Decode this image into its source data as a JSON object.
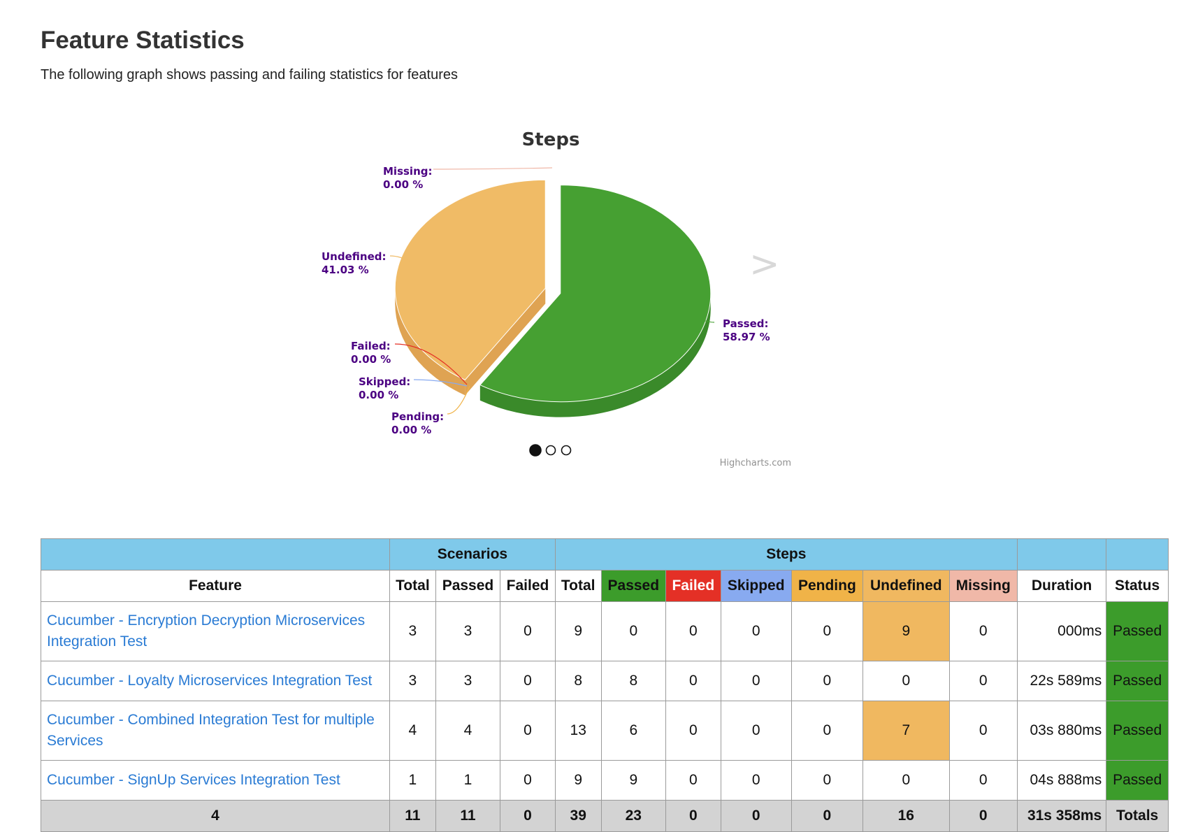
{
  "page": {
    "heading": "Feature Statistics",
    "subheading": "The following graph shows passing and failing statistics for features"
  },
  "chart_data": {
    "type": "pie",
    "title": "Steps",
    "slices": [
      {
        "label": "Passed",
        "value": 58.97,
        "value_text": "58.97 %",
        "color": "#46a032",
        "side_color": "#3a8a2a"
      },
      {
        "label": "Failed",
        "value": 0.0,
        "value_text": "0.00 %",
        "color": "#e43026"
      },
      {
        "label": "Skipped",
        "value": 0.0,
        "value_text": "0.00 %",
        "color": "#88aaf0"
      },
      {
        "label": "Pending",
        "value": 0.0,
        "value_text": "0.00 %",
        "color": "#f0b348"
      },
      {
        "label": "Undefined",
        "value": 41.03,
        "value_text": "41.03 %",
        "color": "#f0bb66",
        "side_color": "#dfa352"
      },
      {
        "label": "Missing",
        "value": 0.0,
        "value_text": "0.00 %",
        "color": "#f0b8a8"
      }
    ],
    "credits": "Highcharts.com",
    "next_arrow": ">",
    "carousel": {
      "count": 3,
      "active": 0
    }
  },
  "table": {
    "groups": {
      "scenarios": "Scenarios",
      "steps": "Steps"
    },
    "columns": {
      "feature": "Feature",
      "sc_total": "Total",
      "sc_passed": "Passed",
      "sc_failed": "Failed",
      "st_total": "Total",
      "st_passed": "Passed",
      "st_failed": "Failed",
      "st_skipped": "Skipped",
      "st_pending": "Pending",
      "st_undefined": "Undefined",
      "st_missing": "Missing",
      "duration": "Duration",
      "status": "Status"
    },
    "rows": [
      {
        "feature": "Cucumber - Encryption Decryption Microservices Integration Test",
        "sc_total": "3",
        "sc_passed": "3",
        "sc_failed": "0",
        "st_total": "9",
        "st_passed": "0",
        "st_failed": "0",
        "st_skipped": "0",
        "st_pending": "0",
        "st_undefined": "9",
        "st_missing": "0",
        "duration": "000ms",
        "status": "Passed"
      },
      {
        "feature": "Cucumber - Loyalty Microservices Integration Test",
        "sc_total": "3",
        "sc_passed": "3",
        "sc_failed": "0",
        "st_total": "8",
        "st_passed": "8",
        "st_failed": "0",
        "st_skipped": "0",
        "st_pending": "0",
        "st_undefined": "0",
        "st_missing": "0",
        "duration": "22s 589ms",
        "status": "Passed"
      },
      {
        "feature": "Cucumber - Combined Integration Test for multiple Services",
        "sc_total": "4",
        "sc_passed": "4",
        "sc_failed": "0",
        "st_total": "13",
        "st_passed": "6",
        "st_failed": "0",
        "st_skipped": "0",
        "st_pending": "0",
        "st_undefined": "7",
        "st_missing": "0",
        "duration": "03s 880ms",
        "status": "Passed"
      },
      {
        "feature": "Cucumber - SignUp Services Integration Test",
        "sc_total": "1",
        "sc_passed": "1",
        "sc_failed": "0",
        "st_total": "9",
        "st_passed": "9",
        "st_failed": "0",
        "st_skipped": "0",
        "st_pending": "0",
        "st_undefined": "0",
        "st_missing": "0",
        "duration": "04s 888ms",
        "status": "Passed"
      }
    ],
    "totals": {
      "feature": "4",
      "sc_total": "11",
      "sc_passed": "11",
      "sc_failed": "0",
      "st_total": "39",
      "st_passed": "23",
      "st_failed": "0",
      "st_skipped": "0",
      "st_pending": "0",
      "st_undefined": "16",
      "st_missing": "0",
      "duration": "31s 358ms",
      "status": "Totals"
    }
  }
}
